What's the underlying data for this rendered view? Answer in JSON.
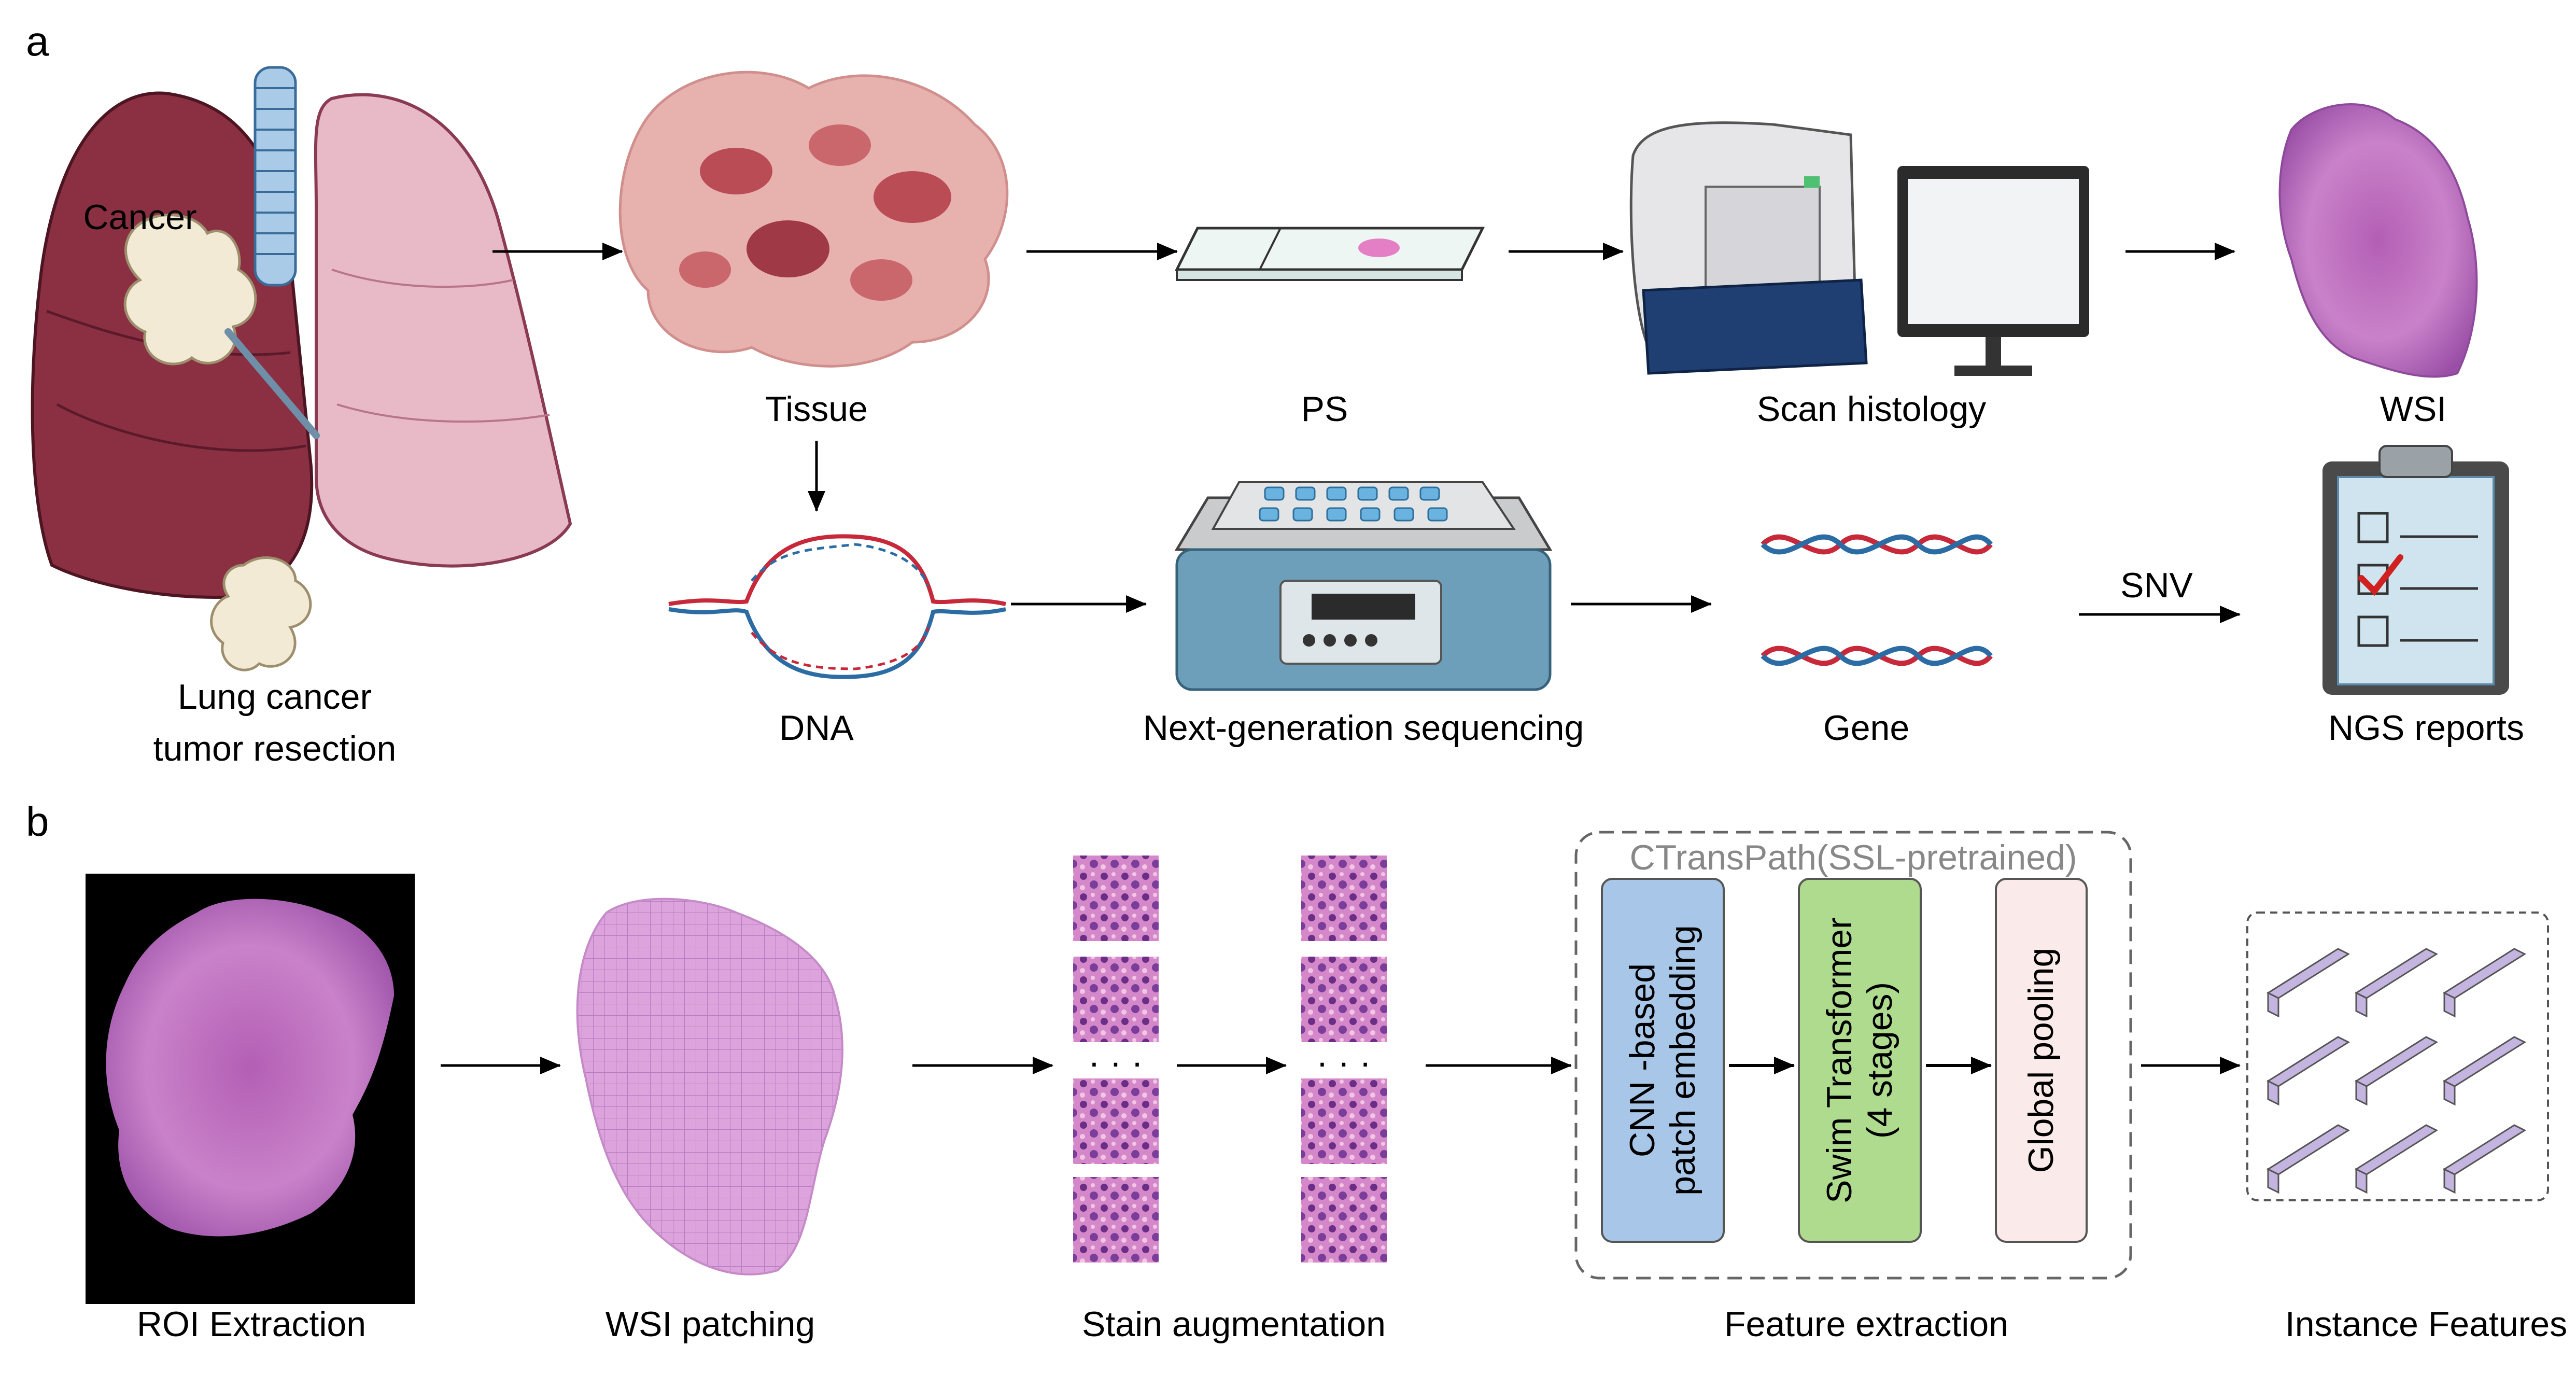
{
  "panels": {
    "a": "a",
    "b": "b"
  },
  "row_a1": {
    "cancer": "Cancer",
    "lung_line1": "Lung cancer",
    "lung_line2": "tumor resection",
    "tissue": "Tissue",
    "ps": "PS",
    "scan": "Scan histology",
    "wsi": "WSI"
  },
  "row_a2": {
    "dna": "DNA",
    "ngs": "Next-generation sequencing",
    "gene": "Gene",
    "snv": "SNV",
    "reports": "NGS reports"
  },
  "row_b": {
    "roi": "ROI Extraction",
    "patching": "WSI patching",
    "stain": "Stain augmentation",
    "feature": "Feature extraction",
    "instance": "Instance Features",
    "dots1": "· · ·",
    "dots2": "· · ·"
  },
  "ctranspath": {
    "title": "CTransPath(SSL-pretrained)",
    "box1_line1": "CNN -based",
    "box1_line2": "patch embedding",
    "box2_line1": "Swim Transformer",
    "box2_line2": "(4 stages)",
    "box3": "Global pooling"
  },
  "colors": {
    "lung_dark": "#8a3042",
    "lung_light": "#e8b9c6",
    "tissue": "#c25d62",
    "he_pink": "#c77bc4",
    "he_purple": "#7a3d8f",
    "box1": "#a8c6e8",
    "box2": "#aedb8e",
    "box3": "#fbeaea",
    "dna_red": "#c7293a",
    "dna_blue": "#2c6ca4",
    "instance": "#c4b4e0"
  }
}
